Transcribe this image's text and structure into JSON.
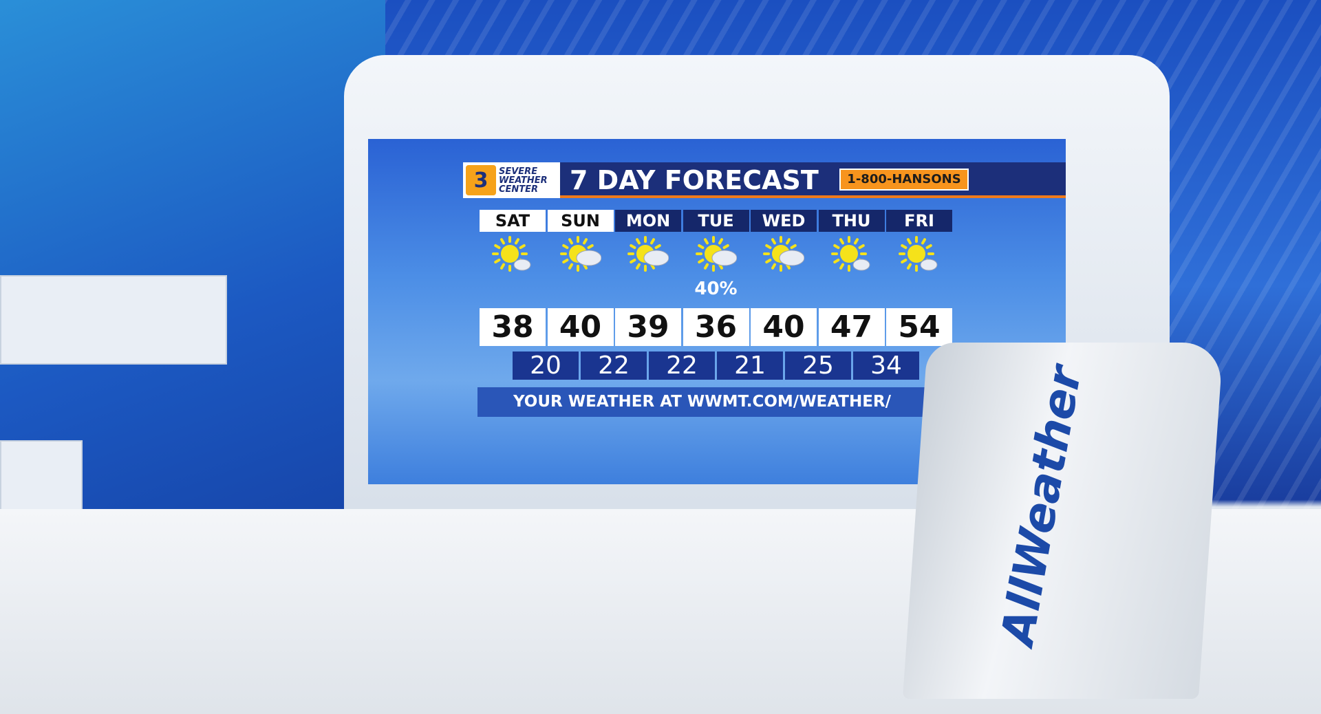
{
  "header": {
    "logo_lines": [
      "SEVERE",
      "WEATHER",
      "CENTER"
    ],
    "logo_number": "3",
    "title": "7 DAY FORECAST",
    "sponsor": "1-800-HANSONS"
  },
  "days": [
    {
      "day": "SAT",
      "icon": "sun-cloud-icon",
      "high": "38",
      "low": "20",
      "precip": ""
    },
    {
      "day": "SUN",
      "icon": "partly-cloudy-icon",
      "high": "40",
      "low": "22",
      "precip": ""
    },
    {
      "day": "MON",
      "icon": "partly-cloudy-icon",
      "high": "39",
      "low": "22",
      "precip": ""
    },
    {
      "day": "TUE",
      "icon": "partly-cloudy-icon",
      "high": "36",
      "low": "21",
      "precip": "40%"
    },
    {
      "day": "WED",
      "icon": "partly-cloudy-icon",
      "high": "40",
      "low": "25",
      "precip": ""
    },
    {
      "day": "THU",
      "icon": "sun-cloud-icon",
      "high": "47",
      "low": "34",
      "precip": ""
    },
    {
      "day": "FRI",
      "icon": "sun-cloud-icon",
      "high": "54",
      "low": "",
      "precip": ""
    }
  ],
  "footer": "YOUR WEATHER AT WWMT.COM/WEATHER/",
  "stand_logo": "AllWeather",
  "colors": {
    "header": "#1c2f7a",
    "accent": "#f7941d",
    "low_bg": "#1a3590"
  }
}
